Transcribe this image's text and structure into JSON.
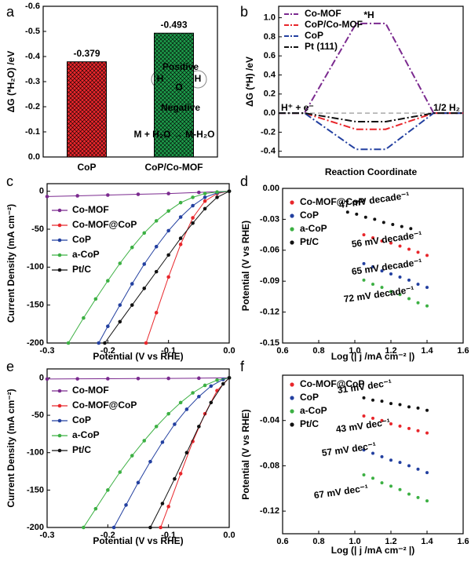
{
  "chart_data": [
    {
      "panel": "a",
      "type": "bar",
      "ylabel": "ΔG (*H₂O) /eV",
      "categories": [
        "CoP",
        "CoP/Co-MOF"
      ],
      "values": [
        -0.379,
        -0.493
      ],
      "colors": [
        "#e8262b",
        "#1d9a4a"
      ],
      "ylim": [
        0,
        -0.6
      ],
      "yticks": [
        {
          "value": 0,
          "label": "0.0"
        },
        -0.1,
        -0.2,
        -0.3,
        -0.4,
        -0.5,
        -0.6
      ],
      "annotations": [
        "Positive",
        "Negative",
        "H",
        "O",
        "H",
        "M + H₂O → M-H₂O"
      ]
    },
    {
      "panel": "b",
      "type": "line",
      "line_style": "dash-dot",
      "ylabel": "ΔG (*H) /eV",
      "xlabel": "Reaction Coordinate",
      "categories": [
        null,
        null,
        null,
        null,
        null,
        null
      ],
      "series": [
        {
          "name": "Co-MOF",
          "color": "#7b2a8f",
          "values": [
            0,
            0,
            0.94,
            0.94,
            0,
            0
          ]
        },
        {
          "name": "CoP/Co-MOF",
          "color": "#e8262b",
          "values": [
            0,
            0,
            -0.17,
            -0.17,
            0,
            0
          ]
        },
        {
          "name": "CoP",
          "color": "#2340a0",
          "values": [
            0,
            0,
            -0.38,
            -0.38,
            0,
            0
          ]
        },
        {
          "name": "Pt (111)",
          "color": "#111111",
          "values": [
            0,
            0,
            -0.09,
            -0.09,
            0,
            0
          ]
        }
      ],
      "ylim": [
        -0.46,
        1.12
      ],
      "yticks": [
        {
          "value": 1,
          "label": "1.0"
        },
        0.8,
        0.6,
        0.4,
        0.2,
        {
          "value": 0,
          "label": "0.0"
        },
        -0.2,
        -0.4
      ],
      "annotations": [
        "*H",
        "H⁺ + e⁻",
        "1/2 H₂"
      ],
      "legend": "upper left"
    },
    {
      "panel": "c",
      "type": "line",
      "markers": true,
      "xlabel": "Potential (V vs RHE)",
      "ylabel": "Current Density (mA cm⁻²)",
      "xlim": [
        -0.3,
        0
      ],
      "xticks": [
        -0.3,
        -0.2,
        -0.1,
        {
          "value": 0,
          "label": "0.0"
        }
      ],
      "ylim": [
        -200,
        10
      ],
      "yticks": [
        0,
        -50,
        -100,
        -150,
        -200
      ],
      "legend": "upper left",
      "series": [
        {
          "name": "Co-MOF",
          "color": "#7b2a8f",
          "x": [
            -0.3,
            -0.25,
            -0.2,
            -0.15,
            -0.1,
            -0.05,
            0
          ],
          "values": [
            -7,
            -6,
            -5,
            -4,
            -3,
            -1.5,
            0
          ]
        },
        {
          "name": "Co-MOF@CoP",
          "color": "#e8262b",
          "x": [
            -0.137,
            -0.12,
            -0.1,
            -0.08,
            -0.06,
            -0.04,
            -0.02,
            0
          ],
          "values": [
            -200,
            -160,
            -113,
            -70,
            -35,
            -13,
            -3,
            0
          ]
        },
        {
          "name": "CoP",
          "color": "#2340a0",
          "x": [
            -0.215,
            -0.2,
            -0.18,
            -0.16,
            -0.14,
            -0.12,
            -0.1,
            -0.08,
            -0.06,
            -0.04,
            -0.02,
            0
          ],
          "values": [
            -200,
            -178,
            -150,
            -122,
            -96,
            -73,
            -52,
            -34,
            -19,
            -8,
            -2,
            0
          ]
        },
        {
          "name": "a-CoP",
          "color": "#3cb043",
          "x": [
            -0.265,
            -0.24,
            -0.22,
            -0.2,
            -0.18,
            -0.16,
            -0.14,
            -0.12,
            -0.1,
            -0.08,
            -0.06,
            -0.04,
            -0.02,
            0
          ],
          "values": [
            -200,
            -167,
            -142,
            -118,
            -95,
            -74,
            -55,
            -39,
            -26,
            -15,
            -8,
            -3,
            -1,
            0
          ]
        },
        {
          "name": "Pt/C",
          "color": "#111111",
          "x": [
            -0.205,
            -0.18,
            -0.16,
            -0.14,
            -0.12,
            -0.1,
            -0.08,
            -0.06,
            -0.04,
            -0.02,
            0
          ],
          "values": [
            -200,
            -172,
            -150,
            -128,
            -106,
            -84,
            -62,
            -42,
            -23,
            -8,
            0
          ]
        }
      ]
    },
    {
      "panel": "d",
      "type": "scatter",
      "xlabel": "Log (| j /mA cm⁻² |)",
      "ylabel": "Potential (V vs RHE)",
      "xlim": [
        0.6,
        1.6
      ],
      "xticks": [
        0.6,
        0.8,
        {
          "value": 1,
          "label": "1.0"
        },
        1.2,
        1.4,
        1.6
      ],
      "ylim": [
        -0.15,
        0
      ],
      "yticks": [
        {
          "value": 0,
          "label": "0.00"
        },
        -0.03,
        -0.06,
        -0.09,
        -0.12,
        -0.15
      ],
      "legend": "upper left",
      "series": [
        {
          "name": "Co-MOF@CoP",
          "color": "#e8262b",
          "x": [
            1.05,
            1.1,
            1.15,
            1.2,
            1.25,
            1.3,
            1.35,
            1.4
          ],
          "values": [
            -0.045,
            -0.048,
            -0.051,
            -0.053,
            -0.056,
            -0.059,
            -0.062,
            -0.065
          ]
        },
        {
          "name": "CoP",
          "color": "#2340a0",
          "x": [
            1.05,
            1.1,
            1.15,
            1.2,
            1.25,
            1.3,
            1.35,
            1.4
          ],
          "values": [
            -0.073,
            -0.076,
            -0.08,
            -0.083,
            -0.086,
            -0.089,
            -0.093,
            -0.096
          ]
        },
        {
          "name": "a-CoP",
          "color": "#3cb043",
          "x": [
            1.05,
            1.1,
            1.15,
            1.2,
            1.25,
            1.3,
            1.35,
            1.4
          ],
          "values": [
            -0.089,
            -0.093,
            -0.096,
            -0.1,
            -0.103,
            -0.107,
            -0.111,
            -0.114
          ]
        },
        {
          "name": "Pt/C",
          "color": "#111111",
          "x": [
            0.96,
            1.01,
            1.06,
            1.11,
            1.16,
            1.21,
            1.26,
            1.31
          ],
          "values": [
            -0.023,
            -0.025,
            -0.028,
            -0.03,
            -0.033,
            -0.035,
            -0.037,
            -0.039
          ]
        }
      ],
      "annotations": [
        "47 mV decade⁻¹",
        "56 mV decade⁻¹",
        "65 mV decade⁻¹",
        "72 mV decade⁻¹"
      ]
    },
    {
      "panel": "e",
      "type": "line",
      "markers": true,
      "xlabel": "Potential (V vs RHE)",
      "ylabel": "Current Density (mA cm⁻²)",
      "xlim": [
        -0.3,
        0
      ],
      "xticks": [
        -0.3,
        -0.2,
        -0.1,
        {
          "value": 0,
          "label": "0.0"
        }
      ],
      "ylim": [
        -200,
        12
      ],
      "yticks": [
        0,
        -50,
        -100,
        -150,
        -200
      ],
      "legend": "upper left",
      "series": [
        {
          "name": "Co-MOF",
          "color": "#7b2a8f",
          "x": [
            -0.3,
            -0.25,
            -0.2,
            -0.15,
            -0.1,
            -0.05,
            0
          ],
          "values": [
            -1.5,
            -1.3,
            -1.1,
            -0.9,
            -0.7,
            -0.4,
            0
          ]
        },
        {
          "name": "Co-MOF@CoP",
          "color": "#e8262b",
          "x": [
            -0.113,
            -0.1,
            -0.08,
            -0.06,
            -0.04,
            -0.02,
            0
          ],
          "values": [
            -200,
            -172,
            -128,
            -85,
            -48,
            -17,
            0
          ]
        },
        {
          "name": "CoP",
          "color": "#2340a0",
          "x": [
            -0.19,
            -0.17,
            -0.15,
            -0.13,
            -0.11,
            -0.09,
            -0.07,
            -0.05,
            -0.03,
            -0.01,
            0
          ],
          "values": [
            -200,
            -170,
            -140,
            -112,
            -86,
            -62,
            -42,
            -25,
            -11,
            -2,
            0
          ]
        },
        {
          "name": "a-CoP",
          "color": "#3cb043",
          "x": [
            -0.24,
            -0.22,
            -0.2,
            -0.18,
            -0.16,
            -0.14,
            -0.12,
            -0.1,
            -0.08,
            -0.06,
            -0.04,
            -0.02,
            0
          ],
          "values": [
            -200,
            -175,
            -150,
            -126,
            -104,
            -84,
            -65,
            -48,
            -33,
            -20,
            -10,
            -3,
            0
          ]
        },
        {
          "name": "Pt/C",
          "color": "#111111",
          "x": [
            -0.13,
            -0.11,
            -0.09,
            -0.07,
            -0.05,
            -0.03,
            -0.01,
            0
          ],
          "values": [
            -200,
            -168,
            -135,
            -100,
            -65,
            -33,
            -8,
            0
          ]
        }
      ]
    },
    {
      "panel": "f",
      "type": "scatter",
      "xlabel": "Log (| j /mA cm⁻² |)",
      "ylabel": "Potential (V vs RHE)",
      "xlim": [
        0.6,
        1.6
      ],
      "xticks": [
        0.6,
        0.8,
        {
          "value": 1,
          "label": "1.0"
        },
        1.2,
        1.4,
        1.6
      ],
      "ylim": [
        -0.14,
        0
      ],
      "yticks": [
        -0.04,
        -0.08,
        -0.12
      ],
      "legend": "upper left",
      "series": [
        {
          "name": "Co-MOF@CoP",
          "color": "#e8262b",
          "x": [
            1.05,
            1.1,
            1.15,
            1.2,
            1.25,
            1.3,
            1.35,
            1.4
          ],
          "values": [
            -0.036,
            -0.038,
            -0.04,
            -0.043,
            -0.045,
            -0.047,
            -0.049,
            -0.051
          ]
        },
        {
          "name": "CoP",
          "color": "#2340a0",
          "x": [
            1.05,
            1.1,
            1.15,
            1.2,
            1.25,
            1.3,
            1.35,
            1.4
          ],
          "values": [
            -0.066,
            -0.069,
            -0.072,
            -0.075,
            -0.077,
            -0.08,
            -0.083,
            -0.086
          ]
        },
        {
          "name": "a-CoP",
          "color": "#3cb043",
          "x": [
            1.05,
            1.1,
            1.15,
            1.2,
            1.25,
            1.3,
            1.35,
            1.4
          ],
          "values": [
            -0.088,
            -0.091,
            -0.095,
            -0.098,
            -0.101,
            -0.105,
            -0.108,
            -0.111
          ]
        },
        {
          "name": "Pt/C",
          "color": "#111111",
          "x": [
            1.05,
            1.1,
            1.15,
            1.2,
            1.25,
            1.3,
            1.35,
            1.4
          ],
          "values": [
            -0.02,
            -0.022,
            -0.023,
            -0.025,
            -0.026,
            -0.028,
            -0.029,
            -0.031
          ]
        }
      ],
      "annotations": [
        "31 mV dec⁻¹",
        "43 mV dec⁻¹",
        "57 mV dec⁻¹",
        "67 mV dec⁻¹"
      ]
    }
  ]
}
